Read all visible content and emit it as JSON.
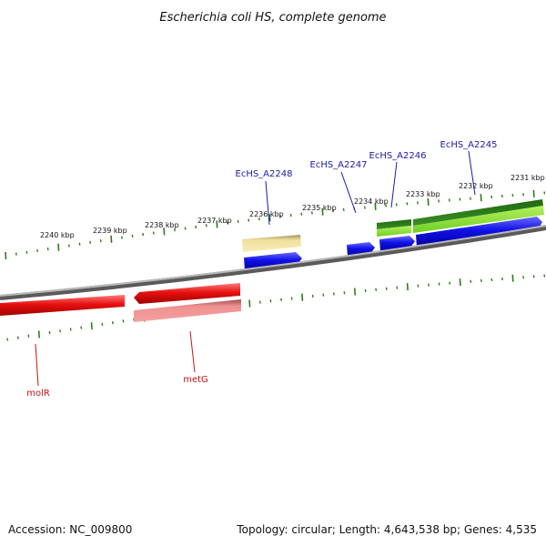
{
  "title": "Escherichia coli HS, complete genome",
  "footer": {
    "accession": "Accession: NC_009800",
    "summary": "Topology: circular; Length: 4,643,538 bp; Genes: 4,535"
  },
  "colors": {
    "backbone": "#8c8c8c",
    "tick": "#2f7d1a",
    "forward_cds": "#1010e6",
    "reverse_cds": "#e81010",
    "reverse_cds_light": "#f08080",
    "pale_feature": "#f0e09a",
    "green_dark": "#2e7d1e",
    "green_light": "#8fe040",
    "label_blue": "#1a1aa8",
    "label_red": "#cc1010"
  },
  "scale_labels": [
    "2240 kbp",
    "2239 kbp",
    "2238 kbp",
    "2237 kbp",
    "2236 kbp",
    "2235 kbp",
    "2234 kbp",
    "2233 kbp",
    "2232 kbp",
    "2231 kbp"
  ],
  "gene_labels": {
    "a2248": "EcHS_A2248",
    "a2247": "EcHS_A2247",
    "a2246": "EcHS_A2246",
    "a2245": "EcHS_A2245",
    "molR": "molR",
    "metG": "metG"
  }
}
